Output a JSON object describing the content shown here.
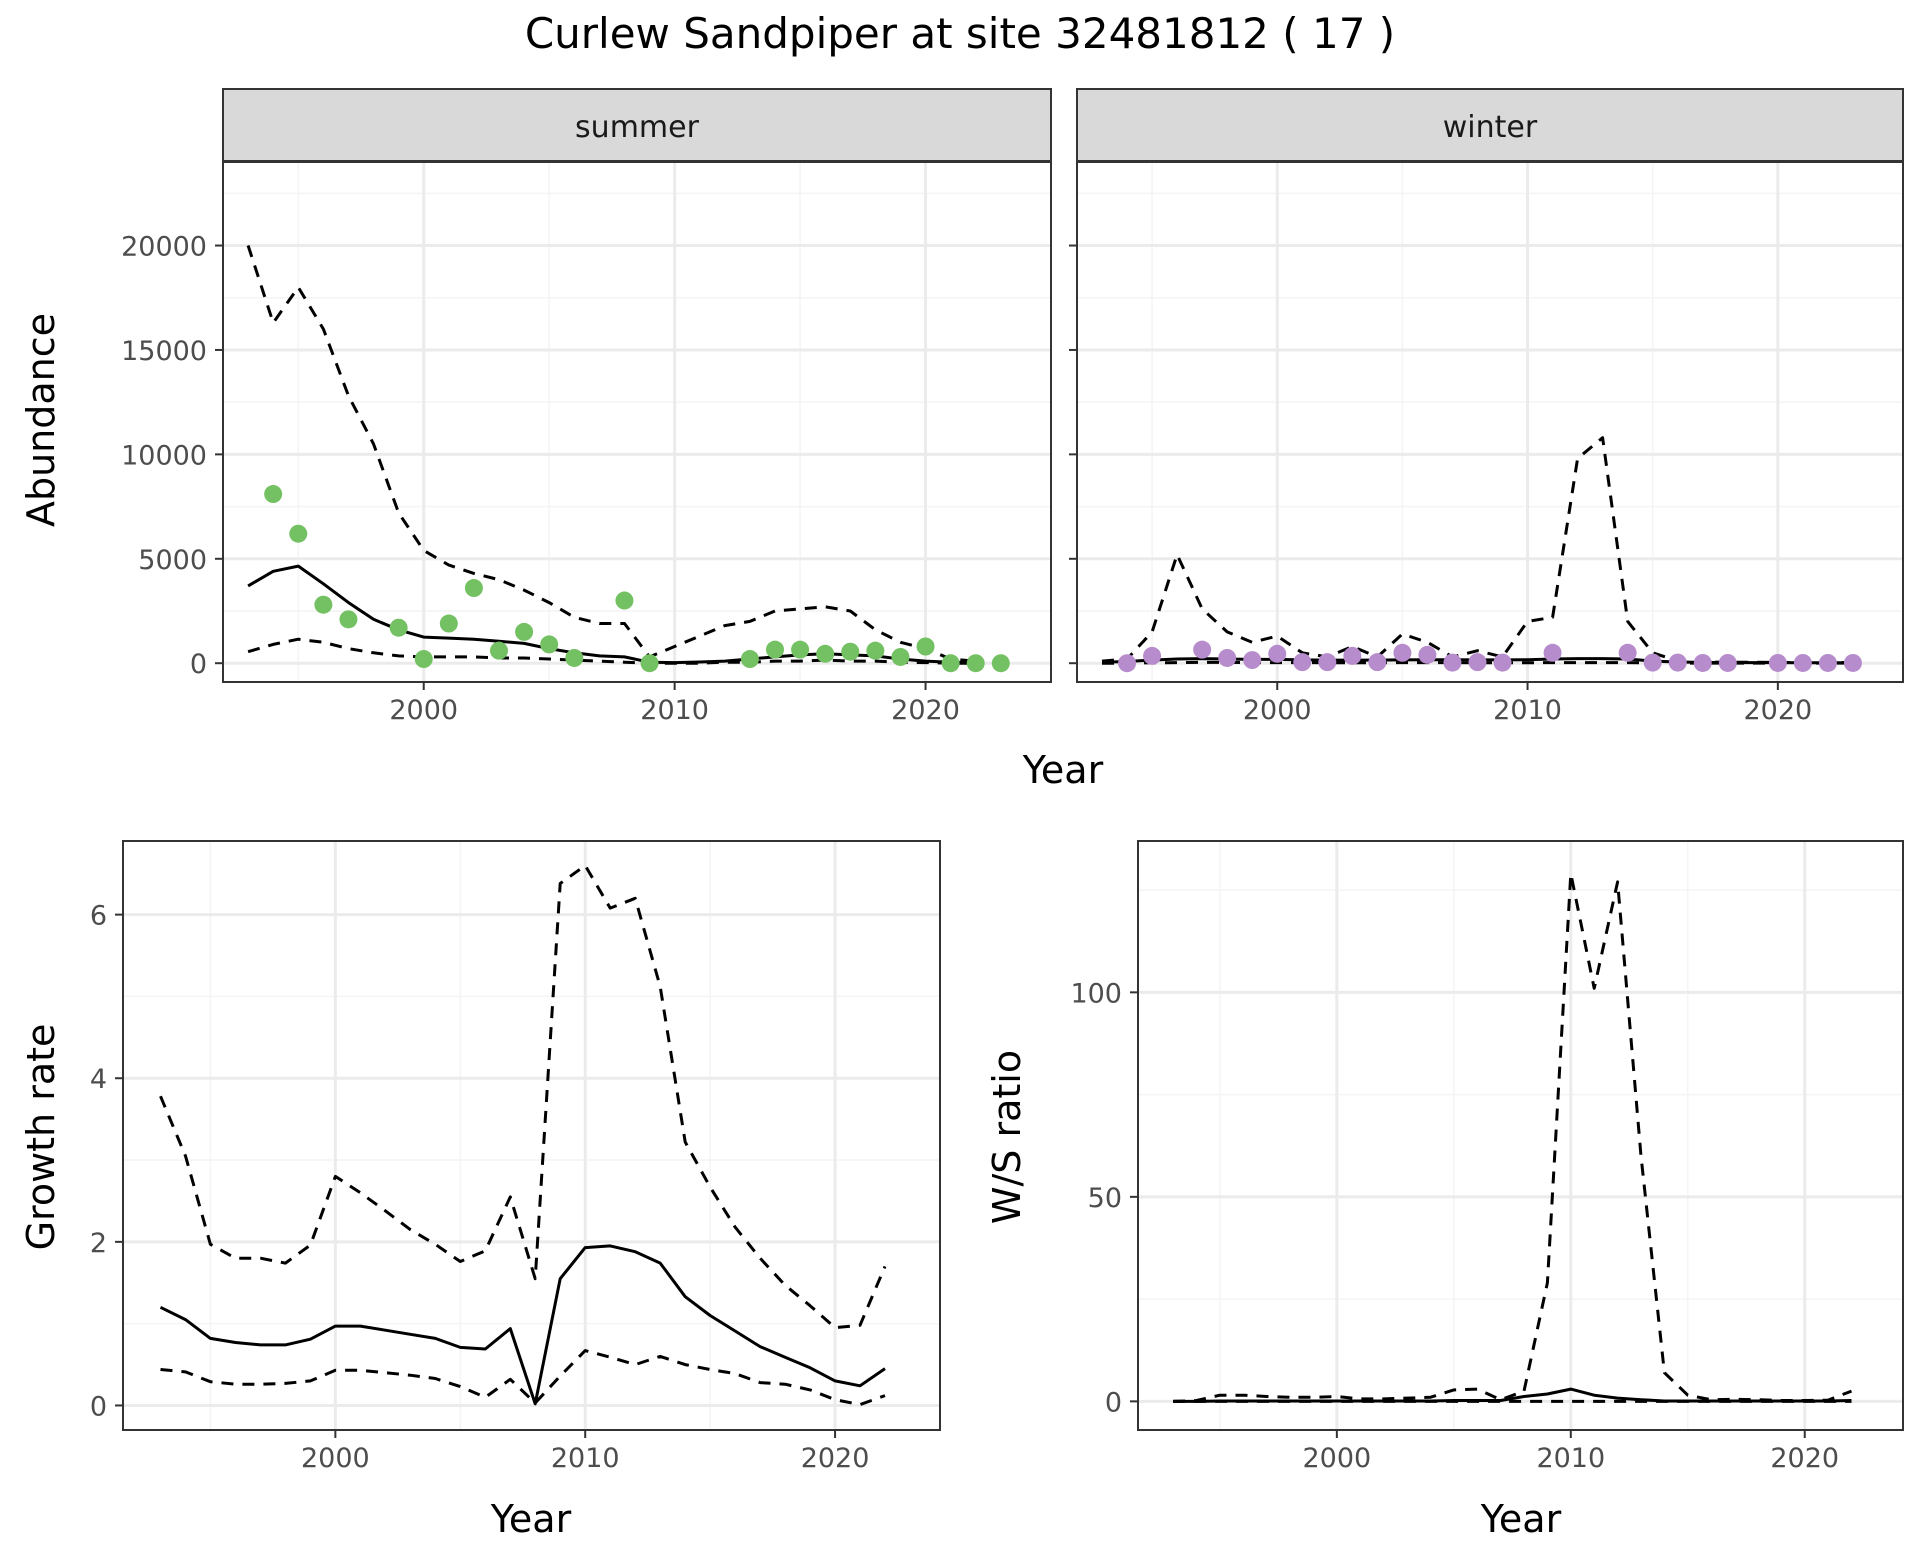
{
  "title": "Curlew Sandpiper at site 32481812 ( 17 )",
  "chart_data": [
    {
      "type": "line",
      "panel": "summer",
      "xlabel": "Year",
      "ylabel": "Abundance",
      "xlim": [
        1992,
        2025
      ],
      "ylim": [
        -900,
        24000
      ],
      "xticks": [
        2000,
        2010,
        2020
      ],
      "yticks": [
        0,
        5000,
        10000,
        15000,
        20000
      ],
      "point_color": "#74c163",
      "series": [
        {
          "style": "solid",
          "x": [
            1993,
            1994,
            1995,
            1996,
            1997,
            1998,
            1999,
            2000,
            2001,
            2002,
            2003,
            2004,
            2005,
            2006,
            2007,
            2008,
            2009,
            2010,
            2011,
            2012,
            2013,
            2014,
            2015,
            2016,
            2017,
            2018,
            2019,
            2020,
            2021,
            2022
          ],
          "y": [
            3700,
            4400,
            4650,
            3800,
            2900,
            2100,
            1600,
            1250,
            1200,
            1150,
            1050,
            950,
            700,
            500,
            350,
            300,
            50,
            30,
            60,
            100,
            200,
            300,
            400,
            450,
            400,
            350,
            200,
            100,
            50,
            20
          ]
        },
        {
          "style": "dashed",
          "x": [
            1993,
            1994,
            1995,
            1996,
            1997,
            1998,
            1999,
            2000,
            2001,
            2002,
            2003,
            2004,
            2005,
            2006,
            2007,
            2008,
            2009,
            2010,
            2011,
            2012,
            2013,
            2014,
            2015,
            2016,
            2017,
            2018,
            2019,
            2020,
            2021,
            2022
          ],
          "y": [
            20000,
            16300,
            18000,
            16000,
            12800,
            10500,
            7200,
            5400,
            4700,
            4300,
            4000,
            3500,
            2900,
            2200,
            1900,
            1900,
            300,
            800,
            1300,
            1800,
            2000,
            2500,
            2600,
            2700,
            2500,
            1600,
            1000,
            700,
            200,
            100
          ]
        },
        {
          "style": "dashed",
          "x": [
            1993,
            1994,
            1995,
            1996,
            1997,
            1998,
            1999,
            2000,
            2001,
            2002,
            2003,
            2004,
            2005,
            2006,
            2007,
            2008,
            2009,
            2010,
            2011,
            2012,
            2013,
            2014,
            2015,
            2016,
            2017,
            2018,
            2019,
            2020,
            2021,
            2022
          ],
          "y": [
            550,
            900,
            1150,
            1000,
            700,
            500,
            350,
            300,
            300,
            300,
            250,
            250,
            200,
            150,
            100,
            50,
            0,
            0,
            0,
            50,
            50,
            100,
            100,
            150,
            100,
            100,
            50,
            30,
            0,
            0
          ]
        }
      ],
      "points": {
        "x": [
          1994,
          1995,
          1996,
          1997,
          1999,
          2000,
          2001,
          2002,
          2003,
          2004,
          2005,
          2006,
          2008,
          2009,
          2013,
          2014,
          2015,
          2016,
          2017,
          2018,
          2019,
          2020,
          2021,
          2022,
          2023
        ],
        "y": [
          8100,
          6200,
          2800,
          2100,
          1700,
          200,
          1900,
          3600,
          600,
          1500,
          900,
          250,
          3000,
          0,
          200,
          650,
          650,
          450,
          550,
          600,
          300,
          800,
          0,
          0,
          0
        ]
      }
    },
    {
      "type": "line",
      "panel": "winter",
      "xlabel": "Year",
      "ylabel": "Abundance",
      "xlim": [
        1992,
        2025
      ],
      "ylim": [
        -900,
        24000
      ],
      "xticks": [
        2000,
        2010,
        2020
      ],
      "yticks": [
        0,
        5000,
        10000,
        15000,
        20000
      ],
      "point_color": "#b78ccc",
      "series": [
        {
          "style": "solid",
          "x": [
            1993,
            1994,
            1995,
            1996,
            1997,
            1998,
            1999,
            2000,
            2001,
            2002,
            2003,
            2004,
            2005,
            2006,
            2007,
            2008,
            2009,
            2010,
            2011,
            2012,
            2013,
            2014,
            2015,
            2016,
            2017,
            2018,
            2019,
            2020,
            2021,
            2022,
            2023
          ],
          "y": [
            50,
            80,
            150,
            200,
            220,
            200,
            180,
            180,
            160,
            150,
            150,
            150,
            160,
            170,
            170,
            160,
            160,
            170,
            200,
            220,
            220,
            200,
            100,
            60,
            40,
            30,
            30,
            30,
            20,
            20,
            20
          ]
        },
        {
          "style": "dashed",
          "x": [
            1993,
            1994,
            1995,
            1996,
            1997,
            1998,
            1999,
            2000,
            2001,
            2002,
            2003,
            2004,
            2005,
            2006,
            2007,
            2008,
            2009,
            2010,
            2011,
            2012,
            2013,
            2014,
            2015,
            2016,
            2017,
            2018,
            2019,
            2020,
            2021,
            2022,
            2023
          ],
          "y": [
            100,
            200,
            1500,
            5200,
            2600,
            1500,
            1000,
            1300,
            500,
            300,
            800,
            300,
            1400,
            1000,
            300,
            600,
            300,
            2000,
            2200,
            9800,
            10800,
            2000,
            500,
            100,
            60,
            50,
            50,
            40,
            30,
            30,
            30
          ]
        },
        {
          "style": "dashed",
          "x": [
            1993,
            1994,
            1995,
            1996,
            1997,
            1998,
            1999,
            2000,
            2001,
            2002,
            2003,
            2004,
            2005,
            2006,
            2007,
            2008,
            2009,
            2010,
            2011,
            2012,
            2013,
            2014,
            2015,
            2016,
            2017,
            2018,
            2019,
            2020,
            2021,
            2022,
            2023
          ],
          "y": [
            0,
            0,
            20,
            30,
            40,
            40,
            30,
            30,
            30,
            20,
            20,
            20,
            30,
            30,
            30,
            20,
            20,
            20,
            30,
            30,
            30,
            30,
            10,
            5,
            5,
            5,
            5,
            5,
            5,
            5,
            5
          ]
        }
      ],
      "points": {
        "x": [
          1994,
          1995,
          1997,
          1998,
          1999,
          2000,
          2001,
          2002,
          2003,
          2004,
          2005,
          2006,
          2007,
          2008,
          2009,
          2011,
          2014,
          2015,
          2016,
          2017,
          2018,
          2020,
          2021,
          2022,
          2023
        ],
        "y": [
          0,
          350,
          650,
          250,
          150,
          450,
          50,
          50,
          350,
          50,
          500,
          400,
          30,
          50,
          30,
          500,
          500,
          30,
          30,
          10,
          10,
          10,
          10,
          10,
          10
        ]
      }
    },
    {
      "type": "line",
      "panel": "growth",
      "xlabel": "Year",
      "ylabel": "Growth rate",
      "xlim": [
        1991.5,
        2024.2
      ],
      "ylim": [
        -0.3,
        6.9
      ],
      "xticks": [
        2000,
        2010,
        2020
      ],
      "yticks": [
        0,
        2,
        4,
        6
      ],
      "series": [
        {
          "style": "solid",
          "x": [
            1993,
            1994,
            1995,
            1996,
            1997,
            1998,
            1999,
            2000,
            2001,
            2002,
            2003,
            2004,
            2005,
            2006,
            2007,
            2008,
            2009,
            2010,
            2011,
            2012,
            2013,
            2014,
            2015,
            2016,
            2017,
            2018,
            2019,
            2020,
            2021,
            2022
          ],
          "y": [
            1.2,
            1.05,
            0.82,
            0.77,
            0.74,
            0.74,
            0.81,
            0.97,
            0.97,
            0.92,
            0.87,
            0.82,
            0.71,
            0.69,
            0.94,
            0.02,
            1.55,
            1.93,
            1.95,
            1.88,
            1.74,
            1.33,
            1.1,
            0.91,
            0.72,
            0.59,
            0.46,
            0.3,
            0.24,
            0.45
          ]
        },
        {
          "style": "dashed",
          "x": [
            1993,
            1994,
            1995,
            1996,
            1997,
            1998,
            1999,
            2000,
            2001,
            2002,
            2003,
            2004,
            2005,
            2006,
            2007,
            2008,
            2009,
            2010,
            2011,
            2012,
            2013,
            2014,
            2015,
            2016,
            2017,
            2018,
            2019,
            2020,
            2021,
            2022
          ],
          "y": [
            3.78,
            3.05,
            1.97,
            1.8,
            1.8,
            1.74,
            1.96,
            2.8,
            2.6,
            2.38,
            2.15,
            1.97,
            1.76,
            1.89,
            2.55,
            1.55,
            6.38,
            6.6,
            6.08,
            6.2,
            5.12,
            3.22,
            2.67,
            2.18,
            1.8,
            1.47,
            1.22,
            0.95,
            0.98,
            1.7
          ]
        },
        {
          "style": "dashed",
          "x": [
            1993,
            1994,
            1995,
            1996,
            1997,
            1998,
            1999,
            2000,
            2001,
            2002,
            2003,
            2004,
            2005,
            2006,
            2007,
            2008,
            2009,
            2010,
            2011,
            2012,
            2013,
            2014,
            2015,
            2016,
            2017,
            2018,
            2019,
            2020,
            2021,
            2022
          ],
          "y": [
            0.44,
            0.41,
            0.29,
            0.26,
            0.26,
            0.27,
            0.3,
            0.43,
            0.43,
            0.4,
            0.37,
            0.33,
            0.23,
            0.1,
            0.32,
            0.03,
            0.36,
            0.67,
            0.59,
            0.5,
            0.6,
            0.5,
            0.44,
            0.39,
            0.28,
            0.26,
            0.19,
            0.07,
            0.01,
            0.12
          ]
        }
      ]
    },
    {
      "type": "line",
      "panel": "ws_ratio",
      "xlabel": "Year",
      "ylabel": "W/S ratio",
      "xlim": [
        1991.5,
        2024.2
      ],
      "ylim": [
        -7,
        137
      ],
      "xticks": [
        2000,
        2010,
        2020
      ],
      "yticks": [
        0,
        50,
        100
      ],
      "series": [
        {
          "style": "solid",
          "x": [
            1993,
            1994,
            1995,
            1996,
            1997,
            1998,
            1999,
            2000,
            2001,
            2002,
            2003,
            2004,
            2005,
            2006,
            2007,
            2008,
            2009,
            2010,
            2011,
            2012,
            2013,
            2014,
            2015,
            2016,
            2017,
            2018,
            2019,
            2020,
            2021,
            2022
          ],
          "y": [
            0,
            0,
            0.1,
            0.1,
            0.1,
            0.1,
            0.1,
            0.1,
            0.1,
            0.1,
            0.1,
            0.1,
            0.2,
            0.2,
            0.2,
            1.2,
            1.8,
            3,
            1.5,
            0.8,
            0.4,
            0.1,
            0.1,
            0.1,
            0.1,
            0.1,
            0.1,
            0.1,
            0.1,
            0.2
          ]
        },
        {
          "style": "dashed",
          "x": [
            1993,
            1994,
            1995,
            1996,
            1997,
            1998,
            1999,
            2000,
            2001,
            2002,
            2003,
            2004,
            2005,
            2006,
            2007,
            2008,
            2009,
            2010,
            2011,
            2012,
            2013,
            2014,
            2015,
            2016,
            2017,
            2018,
            2019,
            2020,
            2021,
            2022
          ],
          "y": [
            0,
            0.2,
            1.5,
            1.5,
            1.2,
            1,
            1,
            1.2,
            0.6,
            0.6,
            0.8,
            1,
            2.8,
            3,
            0.4,
            2.5,
            29,
            129,
            101,
            127,
            60,
            7,
            1.5,
            0.4,
            0.5,
            0.4,
            0.2,
            0.2,
            0.3,
            2.5
          ]
        },
        {
          "style": "dashed",
          "x": [
            1993,
            1994,
            1995,
            1996,
            1997,
            1998,
            1999,
            2000,
            2001,
            2002,
            2003,
            2004,
            2005,
            2006,
            2007,
            2008,
            2009,
            2010,
            2011,
            2012,
            2013,
            2014,
            2015,
            2016,
            2017,
            2018,
            2019,
            2020,
            2021,
            2022
          ],
          "y": [
            0,
            0,
            0,
            0,
            0,
            0,
            0,
            0,
            0,
            0,
            0,
            0,
            0,
            0,
            0,
            0,
            0,
            0,
            0,
            0,
            0,
            0,
            0,
            0,
            0,
            0,
            0,
            0,
            0,
            0
          ]
        }
      ]
    }
  ]
}
